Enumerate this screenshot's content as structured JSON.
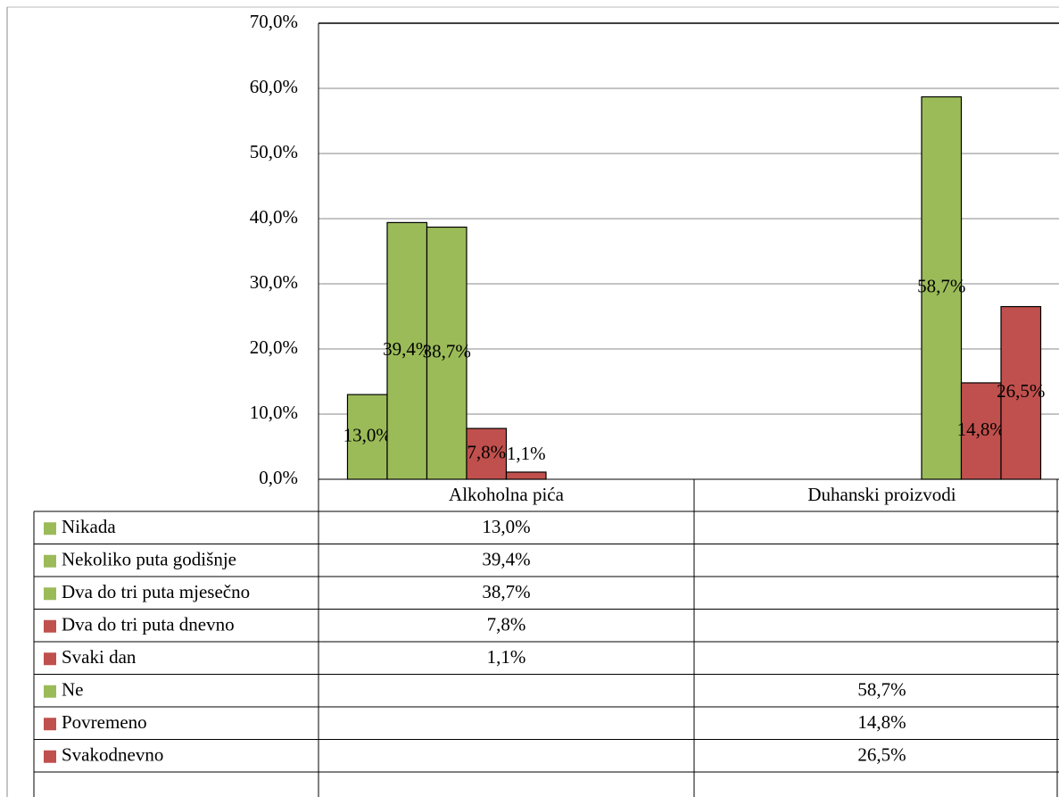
{
  "chart_data": {
    "type": "bar",
    "categories": [
      "Alkoholna pića",
      "Duhanski proizvodi"
    ],
    "ylim": [
      0,
      70
    ],
    "yticks": [
      {
        "value": 0,
        "label": "0,0%"
      },
      {
        "value": 10,
        "label": "10,0%"
      },
      {
        "value": 20,
        "label": "20,0%"
      },
      {
        "value": 30,
        "label": "30,0%"
      },
      {
        "value": 40,
        "label": "40,0%"
      },
      {
        "value": 50,
        "label": "50,0%"
      },
      {
        "value": 60,
        "label": "60,0%"
      },
      {
        "value": 70,
        "label": "70,0%"
      }
    ],
    "grid": true,
    "series": [
      {
        "name": "Nikada",
        "color": "#9bbb59",
        "values": [
          13.0,
          null
        ],
        "value_labels": [
          "13,0%",
          null
        ]
      },
      {
        "name": "Nekoliko puta godišnje",
        "color": "#9bbb59",
        "values": [
          39.4,
          null
        ],
        "value_labels": [
          "39,4%",
          null
        ]
      },
      {
        "name": "Dva do tri puta mjesečno",
        "color": "#9bbb59",
        "values": [
          38.7,
          null
        ],
        "value_labels": [
          "38,7%",
          null
        ]
      },
      {
        "name": "Dva do tri puta dnevno",
        "color": "#c0504d",
        "values": [
          7.8,
          null
        ],
        "value_labels": [
          "7,8%",
          null
        ]
      },
      {
        "name": "Svaki dan",
        "color": "#c0504d",
        "values": [
          1.1,
          null
        ],
        "value_labels": [
          "1,1%",
          null
        ]
      },
      {
        "name": "Ne",
        "color": "#9bbb59",
        "values": [
          null,
          58.7
        ],
        "value_labels": [
          null,
          "58,7%"
        ]
      },
      {
        "name": "Povremeno",
        "color": "#c0504d",
        "values": [
          null,
          14.8
        ],
        "value_labels": [
          null,
          "14,8%"
        ]
      },
      {
        "name": "Svakodnevno",
        "color": "#c0504d",
        "values": [
          null,
          26.5
        ],
        "value_labels": [
          null,
          "26,5%"
        ]
      }
    ]
  }
}
